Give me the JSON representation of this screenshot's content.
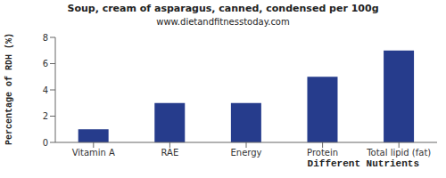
{
  "chart_data": {
    "type": "bar",
    "title": "Soup, cream of asparagus, canned, condensed per 100g",
    "subtitle": "www.dietandfitnesstoday.com",
    "x_label": "Different Nutrients",
    "y_label": "Percentage of RDH (%)",
    "categories": [
      "Vitamin A",
      "RAE",
      "Energy",
      "Protein",
      "Total lipid (fat)"
    ],
    "values": [
      1,
      3,
      3,
      5,
      7
    ],
    "color": "#263c8c",
    "ylim": [
      0,
      8
    ],
    "yticks": [
      0,
      2,
      4,
      6,
      8
    ],
    "grid": false
  }
}
